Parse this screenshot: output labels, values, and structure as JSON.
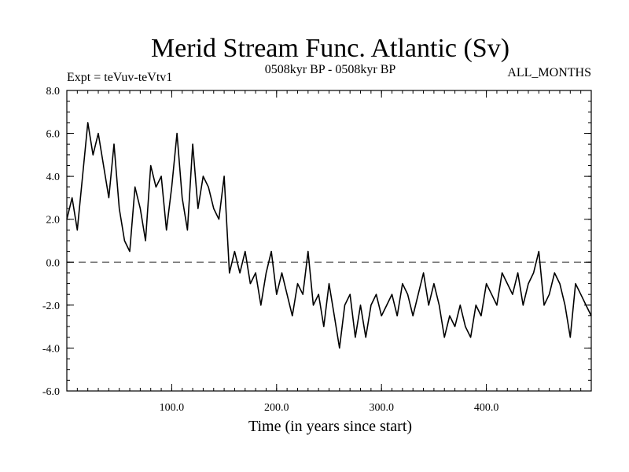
{
  "chart_data": {
    "type": "line",
    "title": "Merid Stream Func. Atlantic (Sv)",
    "subtitle_left": "Expt = teVuv-teVtv1",
    "subtitle_center": "0508kyr BP - 0508kyr BP",
    "subtitle_right": "ALL_MONTHS",
    "xlabel": "Time (in years since start)",
    "ylabel": "",
    "xlim": [
      0,
      500
    ],
    "ylim": [
      -6,
      8
    ],
    "x_ticks": [
      100,
      200,
      300,
      400
    ],
    "x_tick_labels": [
      "100.0",
      "200.0",
      "300.0",
      "400.0"
    ],
    "y_ticks": [
      -6,
      -4,
      -2,
      0,
      2,
      4,
      6,
      8
    ],
    "y_tick_labels": [
      "-6.0",
      "-4.0",
      "-2.0",
      "0.0",
      "2.0",
      "4.0",
      "6.0",
      "8.0"
    ],
    "reference_line": 0,
    "grid": false,
    "line_color": "#000000",
    "series": [
      {
        "x": [
          0,
          5,
          10,
          15,
          20,
          25,
          30,
          35,
          40,
          45,
          50,
          55,
          60,
          65,
          70,
          75,
          80,
          85,
          90,
          95,
          100,
          105,
          110,
          115,
          120,
          125,
          130,
          135,
          140,
          145,
          150,
          155,
          160,
          165,
          170,
          175,
          180,
          185,
          190,
          195,
          200,
          205,
          210,
          215,
          220,
          225,
          230,
          235,
          240,
          245,
          250,
          255,
          260,
          265,
          270,
          275,
          280,
          285,
          290,
          295,
          300,
          305,
          310,
          315,
          320,
          325,
          330,
          335,
          340,
          345,
          350,
          355,
          360,
          365,
          370,
          375,
          380,
          385,
          390,
          395,
          400,
          405,
          410,
          415,
          420,
          425,
          430,
          435,
          440,
          445,
          450,
          455,
          460,
          465,
          470,
          475,
          480,
          485,
          490,
          495,
          500
        ],
        "values": [
          2.0,
          3.0,
          1.5,
          4.0,
          6.5,
          5.0,
          6.0,
          4.5,
          3.0,
          5.5,
          2.5,
          1.0,
          0.5,
          3.5,
          2.5,
          1.0,
          4.5,
          3.5,
          4.0,
          1.5,
          3.5,
          6.0,
          3.0,
          1.5,
          5.5,
          2.5,
          4.0,
          3.5,
          2.5,
          2.0,
          4.0,
          -0.5,
          0.5,
          -0.5,
          0.5,
          -1.0,
          -0.5,
          -2.0,
          -0.5,
          0.5,
          -1.5,
          -0.5,
          -1.5,
          -2.5,
          -1.0,
          -1.5,
          0.5,
          -2.0,
          -1.5,
          -3.0,
          -1.0,
          -2.5,
          -4.0,
          -2.0,
          -1.5,
          -3.5,
          -2.0,
          -3.5,
          -2.0,
          -1.5,
          -2.5,
          -2.0,
          -1.5,
          -2.5,
          -1.0,
          -1.5,
          -2.5,
          -1.5,
          -0.5,
          -2.0,
          -1.0,
          -2.0,
          -3.5,
          -2.5,
          -3.0,
          -2.0,
          -3.0,
          -3.5,
          -2.0,
          -2.5,
          -1.0,
          -1.5,
          -2.0,
          -0.5,
          -1.0,
          -1.5,
          -0.5,
          -2.0,
          -1.0,
          -0.5,
          0.5,
          -2.0,
          -1.5,
          -0.5,
          -1.0,
          -2.0,
          -3.5,
          -1.0,
          -1.5,
          -2.0,
          -2.5
        ]
      }
    ]
  }
}
